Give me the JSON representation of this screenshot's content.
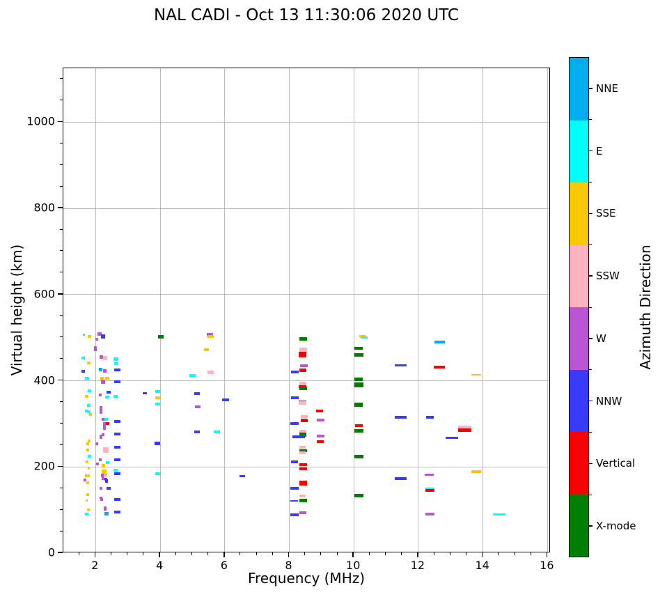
{
  "title": "NAL CADI - Oct 13 11:30:06 2020 UTC",
  "axes": {
    "x": {
      "label": "Frequency (MHz)",
      "min": 1.0,
      "max": 16.1,
      "major_ticks": [
        2,
        4,
        6,
        8,
        10,
        12,
        14,
        16
      ],
      "minor_step": 0.5
    },
    "y": {
      "label": "Virtual height (km)",
      "min": 0,
      "max": 1125,
      "major_ticks": [
        0,
        200,
        400,
        600,
        800,
        1000
      ],
      "minor_step": 50
    }
  },
  "grid": {
    "color": "#bcbcbc",
    "on": true
  },
  "colorbar": {
    "title": "Azimuth Direction",
    "segments_top_to_bottom": [
      {
        "label": "NNE",
        "color": "#00AEEF"
      },
      {
        "label": "E",
        "color": "#00FFFF"
      },
      {
        "label": "SSE",
        "color": "#F9C801"
      },
      {
        "label": "SSW",
        "color": "#FFB3C1"
      },
      {
        "label": "W",
        "color": "#BA55D3"
      },
      {
        "label": "NNW",
        "color": "#3A3AFB"
      },
      {
        "label": "Vertical",
        "color": "#FB0000"
      },
      {
        "label": "X-mode",
        "color": "#007E00"
      }
    ]
  },
  "chart_data": {
    "type": "scatter",
    "marker": "horizontal-dash",
    "title": "NAL CADI - Oct 13 11:30:06 2020 UTC",
    "xlabel": "Frequency (MHz)",
    "ylabel": "Virtual height (km)",
    "xlim": [
      1.0,
      16.1
    ],
    "ylim": [
      0,
      1125
    ],
    "legend_position": "right-colorbar",
    "point_format": "[frequency_MHz, virtual_height_km, azimuth_key, width_px, height_px]",
    "color_key": {
      "NNE": "#00AEEF",
      "E": "#00FFFF",
      "SSE": "#F9C801",
      "SSW": "#FFB3C1",
      "W": "#BA55D3",
      "NNW": "#3A3AFB",
      "V": "#FB0000",
      "X": "#007E00"
    },
    "points": [
      [
        1.63,
        506,
        "E",
        3,
        3
      ],
      [
        1.81,
        502,
        "SSE",
        5,
        4
      ],
      [
        2.13,
        508,
        "W",
        6,
        5
      ],
      [
        2.22,
        503,
        "NNW",
        6,
        6
      ],
      [
        2.04,
        497,
        "W",
        4,
        4
      ],
      [
        2.0,
        475,
        "W",
        4,
        7
      ],
      [
        1.61,
        453,
        "E",
        5,
        4
      ],
      [
        2.17,
        455,
        "W",
        5,
        5
      ],
      [
        2.3,
        452,
        "SSW",
        6,
        6
      ],
      [
        2.63,
        450,
        "E",
        7,
        5
      ],
      [
        1.78,
        442,
        "SSE",
        5,
        4
      ],
      [
        2.63,
        439,
        "E",
        6,
        4
      ],
      [
        2.15,
        426,
        "NNE",
        5,
        5
      ],
      [
        2.28,
        423,
        "W",
        5,
        5
      ],
      [
        1.61,
        422,
        "NNW",
        5,
        4
      ],
      [
        2.67,
        425,
        "NNW",
        9,
        4
      ],
      [
        1.74,
        405,
        "E",
        6,
        4
      ],
      [
        2.2,
        405,
        "SSE",
        5,
        5
      ],
      [
        2.35,
        405,
        "SSE",
        6,
        4
      ],
      [
        2.23,
        397,
        "W",
        6,
        6
      ],
      [
        2.67,
        397,
        "NNW",
        9,
        4
      ],
      [
        1.8,
        376,
        "E",
        5,
        4
      ],
      [
        2.41,
        374,
        "NNW",
        6,
        4
      ],
      [
        1.72,
        363,
        "SSE",
        5,
        4
      ],
      [
        2.15,
        367,
        "W",
        4,
        4
      ],
      [
        2.36,
        362,
        "E",
        6,
        4
      ],
      [
        2.61,
        364,
        "E",
        6,
        4
      ],
      [
        1.78,
        342,
        "E",
        5,
        4
      ],
      [
        1.72,
        329,
        "E",
        4,
        4
      ],
      [
        1.8,
        328,
        "E",
        4,
        4
      ],
      [
        1.84,
        321,
        "SSE",
        4,
        4
      ],
      [
        2.17,
        336,
        "W",
        4,
        6
      ],
      [
        2.17,
        328,
        "W",
        4,
        6
      ],
      [
        2.24,
        310,
        "W",
        4,
        4
      ],
      [
        2.33,
        310,
        "E",
        5,
        4
      ],
      [
        2.67,
        306,
        "NNW",
        9,
        4
      ],
      [
        2.27,
        300,
        "W",
        4,
        4
      ],
      [
        2.36,
        300,
        "V",
        5,
        4
      ],
      [
        2.27,
        292,
        "W",
        4,
        7
      ],
      [
        2.67,
        276,
        "NNW",
        9,
        4
      ],
      [
        2.23,
        274,
        "W",
        4,
        4
      ],
      [
        2.17,
        270,
        "W",
        4,
        6
      ],
      [
        1.8,
        261,
        "SSE",
        4,
        4
      ],
      [
        1.76,
        254,
        "SSE",
        4,
        4
      ],
      [
        2.04,
        254,
        "W",
        4,
        4
      ],
      [
        2.67,
        246,
        "NNW",
        9,
        4
      ],
      [
        2.32,
        239,
        "SSW",
        8,
        8
      ],
      [
        1.76,
        240,
        "SSE",
        4,
        4
      ],
      [
        1.8,
        225,
        "E",
        5,
        4
      ],
      [
        2.15,
        217,
        "W",
        4,
        4
      ],
      [
        2.67,
        217,
        "NNW",
        9,
        4
      ],
      [
        1.73,
        211,
        "SSE",
        4,
        4
      ],
      [
        2.06,
        207,
        "W",
        4,
        4
      ],
      [
        2.36,
        210,
        "E",
        5,
        4
      ],
      [
        2.25,
        203,
        "SSE",
        5,
        5
      ],
      [
        1.78,
        196,
        "SSE",
        3,
        3
      ],
      [
        2.27,
        188,
        "SSE",
        7,
        7
      ],
      [
        2.61,
        193,
        "E",
        6,
        4
      ],
      [
        2.67,
        185,
        "NNW",
        9,
        4
      ],
      [
        1.71,
        180,
        "SSE",
        4,
        4
      ],
      [
        1.78,
        180,
        "SSE",
        4,
        4
      ],
      [
        1.67,
        169,
        "W",
        4,
        4
      ],
      [
        1.76,
        164,
        "SSE",
        4,
        4
      ],
      [
        2.2,
        181,
        "W",
        4,
        5
      ],
      [
        2.31,
        181,
        "SSE",
        5,
        4
      ],
      [
        2.22,
        174,
        "W",
        4,
        5
      ],
      [
        2.32,
        171,
        "NNW",
        4,
        4
      ],
      [
        2.33,
        167,
        "NNW",
        4,
        5
      ],
      [
        2.41,
        150,
        "NNW",
        6,
        4
      ],
      [
        2.17,
        151,
        "W",
        4,
        4
      ],
      [
        1.76,
        135,
        "SSE",
        4,
        4
      ],
      [
        1.73,
        122,
        "SSE",
        3,
        3
      ],
      [
        2.17,
        128,
        "W",
        4,
        4
      ],
      [
        2.18,
        125,
        "W",
        4,
        4
      ],
      [
        2.67,
        125,
        "NNW",
        9,
        4
      ],
      [
        1.78,
        100,
        "SSE",
        4,
        4
      ],
      [
        1.73,
        91,
        "E",
        5,
        4
      ],
      [
        2.3,
        103,
        "W",
        4,
        6
      ],
      [
        2.33,
        91,
        "NNE",
        6,
        5
      ],
      [
        2.67,
        96,
        "NNW",
        9,
        4
      ],
      [
        4.03,
        502,
        "X",
        8,
        5
      ],
      [
        3.92,
        375,
        "E",
        7,
        4
      ],
      [
        3.92,
        360,
        "SSE",
        7,
        4
      ],
      [
        3.92,
        346,
        "E",
        7,
        4
      ],
      [
        3.53,
        371,
        "NNW",
        6,
        3
      ],
      [
        3.92,
        255,
        "NNW",
        8,
        5
      ],
      [
        3.92,
        185,
        "E",
        7,
        4
      ],
      [
        5.54,
        507,
        "W",
        9,
        5
      ],
      [
        5.56,
        503,
        "SSE",
        9,
        4
      ],
      [
        5.43,
        472,
        "SSE",
        7,
        4
      ],
      [
        5.56,
        419,
        "SSW",
        9,
        5
      ],
      [
        5.0,
        412,
        "E",
        9,
        4
      ],
      [
        5.15,
        370,
        "NNW",
        8,
        4
      ],
      [
        6.03,
        356,
        "NNW",
        10,
        4
      ],
      [
        5.17,
        339,
        "W",
        8,
        4
      ],
      [
        5.15,
        282,
        "NNW",
        8,
        4
      ],
      [
        5.76,
        282,
        "E",
        9,
        4
      ],
      [
        6.55,
        178,
        "NNW",
        8,
        3
      ],
      [
        8.43,
        497,
        "X",
        11,
        5
      ],
      [
        8.43,
        470,
        "SSW",
        11,
        9
      ],
      [
        8.41,
        461,
        "V",
        11,
        8
      ],
      [
        8.46,
        434,
        "W",
        11,
        4
      ],
      [
        8.42,
        424,
        "V",
        10,
        5
      ],
      [
        8.18,
        420,
        "NNW",
        11,
        4
      ],
      [
        8.43,
        392,
        "SSW",
        10,
        6
      ],
      [
        8.4,
        386,
        "V",
        11,
        4
      ],
      [
        8.43,
        383,
        "X",
        11,
        5
      ],
      [
        8.18,
        361,
        "NNW",
        11,
        4
      ],
      [
        8.42,
        351,
        "V",
        11,
        4
      ],
      [
        8.42,
        348,
        "SSW",
        11,
        5
      ],
      [
        8.94,
        330,
        "V",
        10,
        4
      ],
      [
        8.46,
        317,
        "SSW",
        10,
        4
      ],
      [
        8.46,
        308,
        "V",
        10,
        5
      ],
      [
        8.96,
        308,
        "W",
        11,
        4
      ],
      [
        8.17,
        300,
        "NNW",
        12,
        4
      ],
      [
        8.43,
        283,
        "SSW",
        10,
        4
      ],
      [
        8.43,
        275,
        "X",
        10,
        6
      ],
      [
        8.3,
        270,
        "NNW",
        18,
        4
      ],
      [
        8.96,
        272,
        "W",
        11,
        4
      ],
      [
        8.95,
        259,
        "V",
        10,
        4
      ],
      [
        8.42,
        245,
        "SSW",
        9,
        4
      ],
      [
        8.43,
        238,
        "X",
        11,
        4
      ],
      [
        8.42,
        233,
        "SSW",
        9,
        4
      ],
      [
        8.16,
        211,
        "NNW",
        10,
        4
      ],
      [
        8.43,
        206,
        "V",
        11,
        4
      ],
      [
        8.43,
        196,
        "V",
        11,
        4
      ],
      [
        8.43,
        163,
        "V",
        11,
        7
      ],
      [
        8.16,
        150,
        "NNW",
        12,
        4
      ],
      [
        8.42,
        133,
        "SSW",
        9,
        4
      ],
      [
        8.15,
        121,
        "NNW",
        11,
        2
      ],
      [
        8.43,
        122,
        "X",
        11,
        5
      ],
      [
        8.16,
        89,
        "NNW",
        12,
        4
      ],
      [
        8.43,
        93,
        "W",
        10,
        4
      ],
      [
        10.27,
        503,
        "SSE",
        9,
        3
      ],
      [
        10.31,
        500,
        "E",
        10,
        3
      ],
      [
        10.15,
        476,
        "X",
        12,
        4
      ],
      [
        10.15,
        460,
        "X",
        13,
        5
      ],
      [
        10.15,
        403,
        "X",
        12,
        5
      ],
      [
        10.15,
        390,
        "X",
        13,
        7
      ],
      [
        10.15,
        344,
        "X",
        12,
        6
      ],
      [
        10.15,
        296,
        "V",
        11,
        4
      ],
      [
        10.15,
        283,
        "X",
        13,
        5
      ],
      [
        10.15,
        224,
        "X",
        13,
        5
      ],
      [
        10.15,
        134,
        "X",
        13,
        5
      ],
      [
        11.45,
        435,
        "NNW",
        17,
        3
      ],
      [
        12.66,
        489,
        "NNE",
        15,
        4
      ],
      [
        12.65,
        432,
        "V",
        16,
        4
      ],
      [
        13.8,
        413,
        "SSE",
        14,
        2
      ],
      [
        11.45,
        315,
        "NNW",
        17,
        4
      ],
      [
        12.35,
        315,
        "NNW",
        11,
        4
      ],
      [
        13.44,
        288,
        "SSW",
        19,
        9
      ],
      [
        13.44,
        285,
        "V",
        19,
        5
      ],
      [
        13.03,
        267,
        "NNW",
        18,
        3
      ],
      [
        13.8,
        189,
        "SSE",
        14,
        4
      ],
      [
        11.45,
        173,
        "NNW",
        17,
        4
      ],
      [
        12.34,
        182,
        "W",
        13,
        3
      ],
      [
        12.35,
        150,
        "E",
        13,
        3
      ],
      [
        12.35,
        146,
        "V",
        13,
        4
      ],
      [
        12.35,
        90,
        "W",
        13,
        4
      ],
      [
        14.5,
        90,
        "E",
        18,
        3
      ]
    ]
  }
}
